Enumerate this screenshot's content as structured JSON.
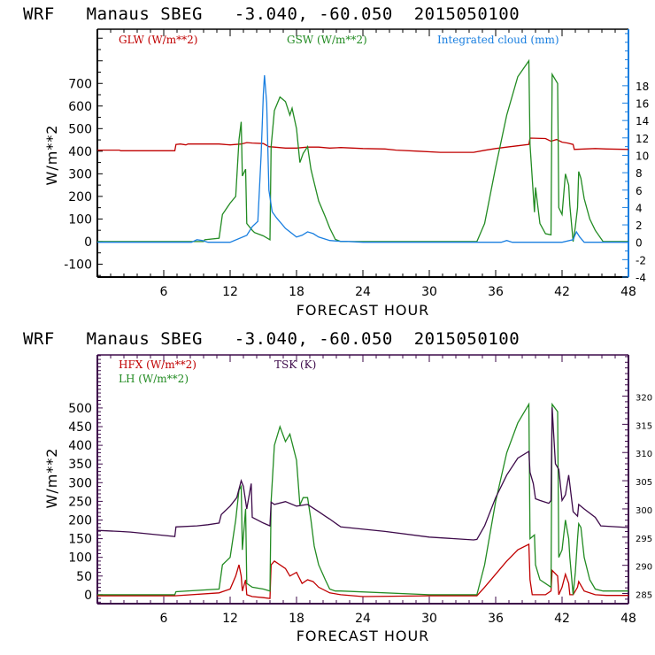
{
  "chart_data": [
    {
      "type": "line",
      "title": "WRF   Manaus SBEG   -3.040, -60.050  2015050100",
      "xlabel": "FORECAST HOUR",
      "ylabel": "W/m**2",
      "xlim": [
        0,
        48
      ],
      "ylim": [
        -157,
        940
      ],
      "y2lim": [
        -4,
        24.5
      ],
      "xticks": [
        6,
        12,
        18,
        24,
        30,
        36,
        42,
        48
      ],
      "xtick_labels": [
        "6",
        "12",
        "18",
        "24",
        "30",
        "36",
        "42",
        "48"
      ],
      "yticks": [
        -100,
        0,
        100,
        200,
        300,
        400,
        500,
        600,
        700
      ],
      "ytick_labels": [
        "-100",
        "0",
        "100",
        "200",
        "300",
        "400",
        "500",
        "600",
        "700"
      ],
      "y2ticks": [
        -4,
        -2,
        0,
        2,
        4,
        6,
        8,
        10,
        12,
        14,
        16,
        18
      ],
      "y2tick_labels": [
        "-4",
        "-2",
        "0",
        "2",
        "4",
        "6",
        "8",
        "10",
        "12",
        "14",
        "16",
        "18"
      ],
      "grid": false,
      "legend_placement": "top",
      "axis_color": "#000000",
      "right_axis_color": "#1a7fe0",
      "series": [
        {
          "name": "GLW (W/m**2)",
          "color": "#c00000",
          "axis": "left",
          "x": [
            0,
            2,
            2.1,
            7,
            7.1,
            7.5,
            8,
            8.2,
            11,
            12,
            13,
            13.5,
            14,
            15,
            15.5,
            16,
            17,
            18,
            19,
            20,
            21,
            22,
            24,
            26,
            27,
            29,
            31,
            33,
            34,
            35,
            36,
            37,
            38,
            39,
            39.1,
            40.5,
            41,
            41.5,
            42,
            42.5,
            43,
            43.1,
            45,
            46,
            48
          ],
          "y": [
            405,
            405,
            402,
            402,
            430,
            432,
            428,
            432,
            432,
            428,
            432,
            438,
            436,
            434,
            420,
            418,
            414,
            414,
            418,
            418,
            414,
            416,
            412,
            410,
            405,
            400,
            395,
            395,
            395,
            404,
            412,
            418,
            424,
            430,
            458,
            456,
            444,
            452,
            440,
            436,
            430,
            408,
            412,
            410,
            408
          ]
        },
        {
          "name": "GSW (W/m**2)",
          "color": "#228b22",
          "axis": "left",
          "x": [
            0,
            9.6,
            9.7,
            11,
            11.3,
            12,
            12.5,
            12.8,
            13,
            13.1,
            13.4,
            13.5,
            14,
            14.2,
            15,
            15.6,
            15.7,
            16,
            16.5,
            17,
            17.4,
            17.6,
            18,
            18.3,
            18.6,
            19,
            19.3,
            19.6,
            20,
            20.6,
            21,
            21.5,
            22,
            34.3,
            35,
            36,
            37,
            38,
            39,
            39.1,
            39.5,
            39.6,
            40,
            40.5,
            41,
            41.1,
            41.6,
            41.7,
            42,
            42.3,
            42.6,
            42.7,
            43,
            43.2,
            43.4,
            43.5,
            43.7,
            44,
            44.5,
            45,
            45.7,
            48
          ],
          "y": [
            0,
            0,
            8,
            15,
            120,
            170,
            200,
            450,
            530,
            290,
            320,
            80,
            50,
            40,
            25,
            8,
            420,
            580,
            640,
            620,
            560,
            590,
            500,
            350,
            390,
            420,
            320,
            260,
            180,
            110,
            60,
            10,
            0,
            0,
            80,
            330,
            560,
            730,
            800,
            430,
            130,
            240,
            80,
            35,
            30,
            740,
            700,
            150,
            120,
            300,
            250,
            160,
            0,
            65,
            150,
            310,
            280,
            190,
            100,
            50,
            0,
            0
          ]
        },
        {
          "name": "Integrated cloud (mm)",
          "color": "#1a7fe0",
          "axis": "right",
          "x": [
            0,
            8.5,
            9,
            9.5,
            10,
            12,
            13.5,
            14,
            14.5,
            14.8,
            15,
            15.1,
            15.3,
            15.5,
            15.8,
            16.2,
            17,
            18,
            18.5,
            19,
            19.5,
            20,
            21,
            22,
            22.5,
            24,
            30,
            36.5,
            37,
            37.5,
            42,
            43,
            43.3,
            43.6,
            44,
            48
          ],
          "y": [
            0,
            0,
            0.3,
            0.2,
            0,
            0,
            0.8,
            1.8,
            2.4,
            10,
            17,
            19.2,
            16,
            6,
            3.5,
            2.8,
            1.6,
            0.6,
            0.8,
            1.2,
            1.0,
            0.6,
            0.2,
            0.1,
            0.1,
            0,
            0,
            0,
            0.2,
            0,
            0,
            0.3,
            1.2,
            0.6,
            0,
            0
          ]
        }
      ]
    },
    {
      "type": "line",
      "title": "WRF   Manaus SBEG   -3.040, -60.050  2015050100",
      "xlabel": "FORECAST HOUR",
      "ylabel": "W/m**2",
      "xlim": [
        0,
        48
      ],
      "ylim": [
        -24,
        642
      ],
      "y2lim": [
        283.2,
        327.3
      ],
      "xticks": [
        6,
        12,
        18,
        24,
        30,
        36,
        42,
        48
      ],
      "xtick_labels": [
        "6",
        "12",
        "18",
        "24",
        "30",
        "36",
        "42",
        "48"
      ],
      "yticks": [
        0,
        50,
        100,
        150,
        200,
        250,
        300,
        350,
        400,
        450,
        500
      ],
      "ytick_labels": [
        "0",
        "50",
        "100",
        "150",
        "200",
        "250",
        "300",
        "350",
        "400",
        "450",
        "500"
      ],
      "y2ticks": [
        285,
        290,
        295,
        300,
        305,
        310,
        315,
        320
      ],
      "y2tick_labels": [
        "285",
        "290",
        "295",
        "300",
        "305",
        "310",
        "315",
        "320"
      ],
      "grid": false,
      "legend_placement": "top-left",
      "axis_color": "#3d0a4a",
      "series": [
        {
          "name": "HFX (W/m**2)",
          "color": "#c00000",
          "axis": "left",
          "x": [
            0,
            3,
            7,
            11,
            12,
            12.5,
            12.8,
            13,
            13.1,
            13.4,
            13.5,
            14,
            15,
            15.6,
            15.7,
            16,
            17,
            17.4,
            18,
            18.5,
            19,
            19.5,
            20,
            21,
            22,
            24,
            30,
            34.3,
            35,
            36,
            37,
            38,
            39,
            39.1,
            39.3,
            40,
            40.5,
            41,
            41.1,
            41.6,
            41.7,
            42,
            42.3,
            42.6,
            42.7,
            43,
            43.4,
            43.5,
            44,
            45,
            46,
            48
          ],
          "y": [
            -3,
            -3,
            -3,
            5,
            15,
            50,
            80,
            50,
            10,
            40,
            0,
            -5,
            -8,
            -10,
            80,
            90,
            70,
            50,
            60,
            30,
            40,
            35,
            20,
            5,
            0,
            -5,
            -3,
            -3,
            20,
            55,
            90,
            120,
            135,
            40,
            0,
            0,
            0,
            10,
            65,
            50,
            0,
            20,
            55,
            30,
            0,
            0,
            20,
            35,
            10,
            0,
            -2,
            -2
          ]
        },
        {
          "name": "LH (W/m**2)",
          "color": "#228b22",
          "axis": "left",
          "x": [
            0,
            7,
            7.1,
            11,
            11.3,
            12,
            12.5,
            12.8,
            13,
            13.1,
            13.4,
            13.5,
            14,
            15,
            15.6,
            15.7,
            16,
            16.5,
            17,
            17.4,
            18,
            18.3,
            18.6,
            19,
            19.3,
            19.6,
            20,
            20.6,
            21,
            21.5,
            22,
            30,
            34.3,
            35,
            36,
            37,
            38,
            39,
            39.1,
            39.5,
            39.6,
            40,
            40.5,
            41,
            41.1,
            41.6,
            41.7,
            42,
            42.3,
            42.6,
            42.7,
            43,
            43.2,
            43.4,
            43.5,
            43.7,
            44,
            44.5,
            45,
            45.7,
            48
          ],
          "y": [
            0,
            0,
            8,
            15,
            80,
            100,
            200,
            280,
            290,
            120,
            230,
            30,
            20,
            15,
            10,
            250,
            400,
            450,
            410,
            430,
            360,
            240,
            260,
            260,
            200,
            130,
            80,
            40,
            15,
            10,
            10,
            0,
            0,
            80,
            250,
            380,
            460,
            510,
            150,
            160,
            80,
            40,
            30,
            20,
            510,
            490,
            100,
            120,
            200,
            150,
            100,
            0,
            60,
            150,
            190,
            180,
            100,
            40,
            15,
            10,
            10
          ]
        },
        {
          "name": "TSK (K)",
          "color": "#3d0a4a",
          "axis": "right",
          "x": [
            0,
            2,
            3,
            4,
            5,
            6,
            7,
            7.1,
            9,
            10,
            11,
            11.2,
            12,
            12.6,
            13,
            13.2,
            13.5,
            13.9,
            14,
            15,
            15.6,
            15.7,
            16,
            17,
            18,
            19,
            20,
            20.6,
            21,
            22,
            26,
            30,
            34,
            34.3,
            35,
            36,
            37,
            38,
            39,
            39.1,
            39.4,
            39.6,
            40,
            40.8,
            41,
            41.1,
            41.4,
            41.7,
            42,
            42.3,
            42.6,
            43,
            43.4,
            43.5,
            44,
            45,
            45.5,
            48
          ],
          "y": [
            296.2,
            296,
            295.9,
            295.7,
            295.5,
            295.3,
            295.1,
            296.8,
            297,
            297.2,
            297.5,
            299,
            300.5,
            302,
            305,
            304,
            300,
            304.5,
            298.5,
            297.5,
            297,
            301.2,
            300.8,
            301.3,
            300.5,
            300.8,
            299.5,
            298.7,
            298.2,
            296.8,
            296,
            295,
            294.5,
            294.6,
            297,
            302,
            306,
            309,
            310.2,
            306.5,
            304.5,
            301.8,
            301.5,
            301,
            301.5,
            318,
            308,
            307,
            301.5,
            302.5,
            306,
            299.5,
            298.7,
            300.8,
            300,
            298.5,
            297,
            296.7
          ]
        }
      ]
    }
  ],
  "top": {
    "title": "WRF   Manaus SBEG   -3.040, -60.050  2015050100",
    "legend": [
      "GLW (W/m**2)",
      "GSW (W/m**2)",
      "Integrated cloud (mm)"
    ],
    "ylabel": "W/m**2",
    "xlabel": "FORECAST HOUR"
  },
  "bottom": {
    "title": "WRF   Manaus SBEG   -3.040, -60.050  2015050100",
    "legend": [
      "HFX (W/m**2)",
      "LH (W/m**2)",
      "TSK (K)"
    ],
    "ylabel": "W/m**2",
    "xlabel": "FORECAST HOUR"
  }
}
